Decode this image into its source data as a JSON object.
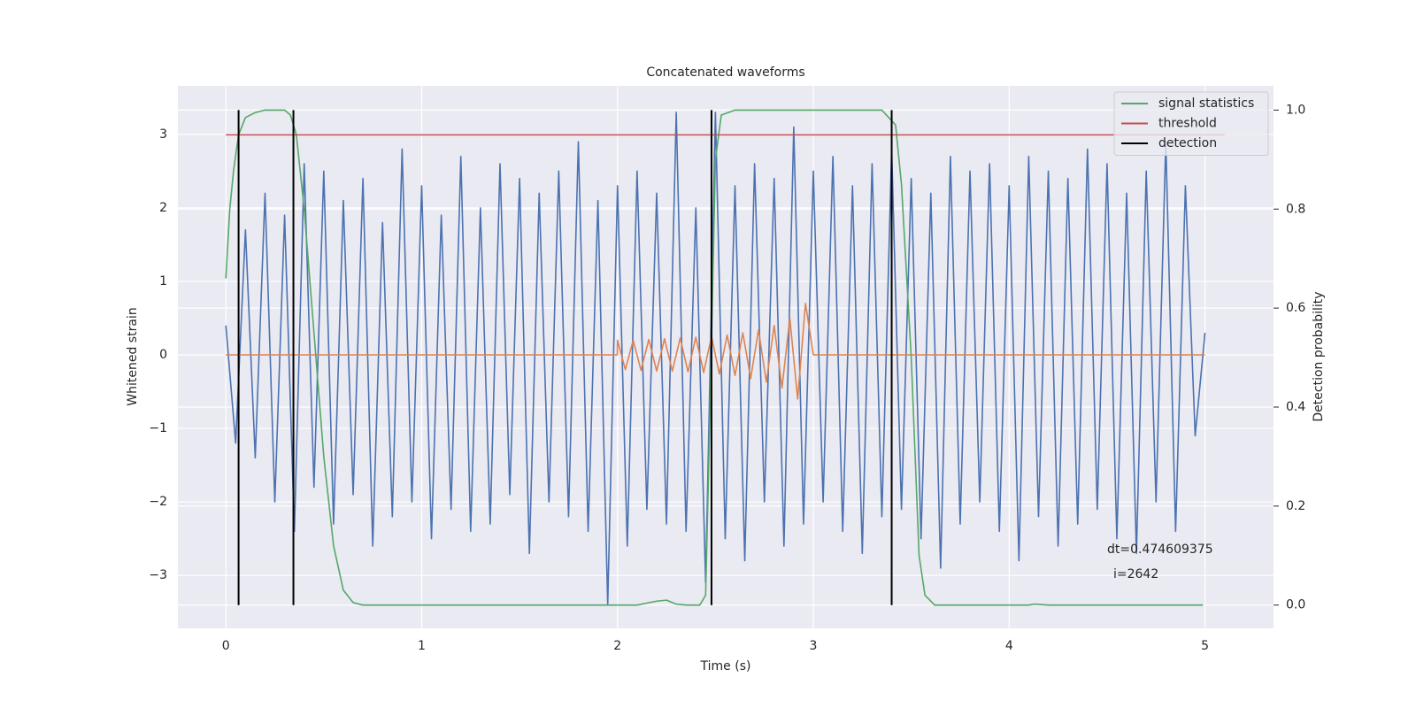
{
  "chart_data": {
    "type": "line",
    "title": "Concatenated waveforms",
    "xlabel": "Time (s)",
    "ylabel": "Whitened strain",
    "y2label": "Detection probability",
    "xlim": [
      -0.245,
      5.35
    ],
    "ylim": [
      -3.72,
      3.66
    ],
    "y2lim": [
      -0.047,
      1.049
    ],
    "xticks": [
      0,
      1,
      2,
      3,
      4,
      5
    ],
    "yticks": [
      {
        "value": -3,
        "label": "−3"
      },
      {
        "value": -2,
        "label": "−2"
      },
      {
        "value": -1,
        "label": "−1"
      },
      0,
      1,
      2,
      3
    ],
    "y2ticks": [
      {
        "value": 0,
        "label": "0.0"
      },
      0.2,
      0.4,
      0.6,
      0.8,
      {
        "value": 1,
        "label": "1.0"
      }
    ],
    "grid": true,
    "legend": "upper right",
    "series": [
      {
        "color": "#4c72b0",
        "x": [
          0,
          0.05,
          0.1,
          0.15,
          0.2,
          0.25,
          0.3,
          0.35,
          0.4,
          0.45,
          0.5,
          0.55,
          0.6,
          0.65,
          0.7,
          0.75,
          0.8,
          0.85,
          0.9,
          0.95,
          1,
          1.05,
          1.1,
          1.15,
          1.2,
          1.25,
          1.3,
          1.35,
          1.4,
          1.45,
          1.5,
          1.55,
          1.6,
          1.65,
          1.7,
          1.75,
          1.8,
          1.85,
          1.9,
          1.95,
          2,
          2.05,
          2.1,
          2.15,
          2.2,
          2.25,
          2.3,
          2.35,
          2.4,
          2.45,
          2.5,
          2.55,
          2.6,
          2.65,
          2.7,
          2.75,
          2.8,
          2.85,
          2.9,
          2.95,
          3,
          3.05,
          3.1,
          3.15,
          3.2,
          3.25,
          3.3,
          3.35,
          3.4,
          3.45,
          3.5,
          3.55,
          3.6,
          3.65,
          3.7,
          3.75,
          3.8,
          3.85,
          3.9,
          3.95,
          4,
          4.05,
          4.1,
          4.15,
          4.2,
          4.25,
          4.3,
          4.35,
          4.4,
          4.45,
          4.5,
          4.55,
          4.6,
          4.65,
          4.7,
          4.75,
          4.8,
          4.85,
          4.9,
          4.95,
          5
        ],
        "values": [
          0.4,
          -1.2,
          1.7,
          -1.4,
          2.2,
          -2.0,
          1.9,
          -2.4,
          2.6,
          -1.8,
          2.5,
          -2.3,
          2.1,
          -1.9,
          2.4,
          -2.6,
          1.8,
          -2.2,
          2.8,
          -2.0,
          2.3,
          -2.5,
          1.9,
          -2.1,
          2.7,
          -2.4,
          2.0,
          -2.3,
          2.6,
          -1.9,
          2.4,
          -2.7,
          2.2,
          -2.0,
          2.5,
          -2.2,
          2.9,
          -2.4,
          2.1,
          -3.4,
          2.3,
          -2.6,
          2.5,
          -2.1,
          2.2,
          -2.3,
          3.3,
          -2.4,
          2.0,
          -3.1,
          3.3,
          -2.5,
          2.3,
          -2.8,
          2.6,
          -2.0,
          2.4,
          -2.6,
          3.1,
          -2.3,
          2.5,
          -2.0,
          2.7,
          -2.4,
          2.3,
          -2.7,
          2.6,
          -2.2,
          2.8,
          -2.1,
          2.4,
          -2.5,
          2.2,
          -2.9,
          2.7,
          -2.3,
          2.5,
          -2.0,
          2.6,
          -2.4,
          2.3,
          -2.8,
          2.7,
          -2.2,
          2.5,
          -2.6,
          2.4,
          -2.3,
          2.8,
          -2.1,
          2.6,
          -2.5,
          2.2,
          -2.7,
          2.5,
          -2.0,
          2.9,
          -2.4,
          2.3,
          -1.1,
          0.3
        ]
      },
      {
        "color": "#dd8452",
        "x": [
          0,
          1.999,
          2.0,
          2.04,
          2.08,
          2.12,
          2.16,
          2.2,
          2.24,
          2.28,
          2.32,
          2.36,
          2.4,
          2.44,
          2.48,
          2.52,
          2.56,
          2.6,
          2.64,
          2.68,
          2.72,
          2.76,
          2.8,
          2.84,
          2.88,
          2.92,
          2.96,
          3.0,
          5
        ],
        "values": [
          0,
          0,
          0.2,
          -0.2,
          0.2,
          -0.21,
          0.21,
          -0.22,
          0.22,
          -0.22,
          0.23,
          -0.23,
          0.24,
          -0.24,
          0.25,
          -0.26,
          0.27,
          -0.28,
          0.3,
          -0.32,
          0.34,
          -0.37,
          0.4,
          -0.45,
          0.5,
          -0.6,
          0.7,
          0,
          0
        ]
      },
      {
        "name": "signal statistics",
        "color": "#55a868",
        "axis": "y2",
        "x": [
          0,
          0.02,
          0.04,
          0.065,
          0.1,
          0.15,
          0.2,
          0.3,
          0.33,
          0.36,
          0.4,
          0.45,
          0.5,
          0.55,
          0.6,
          0.65,
          0.7,
          2.1,
          2.2,
          2.25,
          2.3,
          2.35,
          2.42,
          2.45,
          2.47,
          2.5,
          2.53,
          2.6,
          3.35,
          3.42,
          3.45,
          3.5,
          3.54,
          3.57,
          3.62,
          4.1,
          4.13,
          4.2,
          4.99
        ],
        "values": [
          0.66,
          0.8,
          0.88,
          0.95,
          0.985,
          0.995,
          1.0,
          1.0,
          0.99,
          0.95,
          0.8,
          0.55,
          0.3,
          0.12,
          0.03,
          0.005,
          0,
          0,
          0.008,
          0.01,
          0.002,
          0,
          0,
          0.02,
          0.35,
          0.9,
          0.99,
          1.0,
          1.0,
          0.97,
          0.85,
          0.5,
          0.1,
          0.02,
          0,
          0,
          0.002,
          0,
          0
        ]
      },
      {
        "name": "threshold",
        "color": "#c44e52",
        "axis": "y2",
        "x": [
          0,
          5.1
        ],
        "values": [
          0.95,
          0.95
        ]
      },
      {
        "name": "detection",
        "color": "#000000",
        "type": "vline",
        "axis": "y2",
        "x": [
          0.065,
          0.345,
          2.48,
          3.4
        ]
      }
    ],
    "annotation": [
      "dt=0.474609375",
      "i=2642"
    ]
  }
}
